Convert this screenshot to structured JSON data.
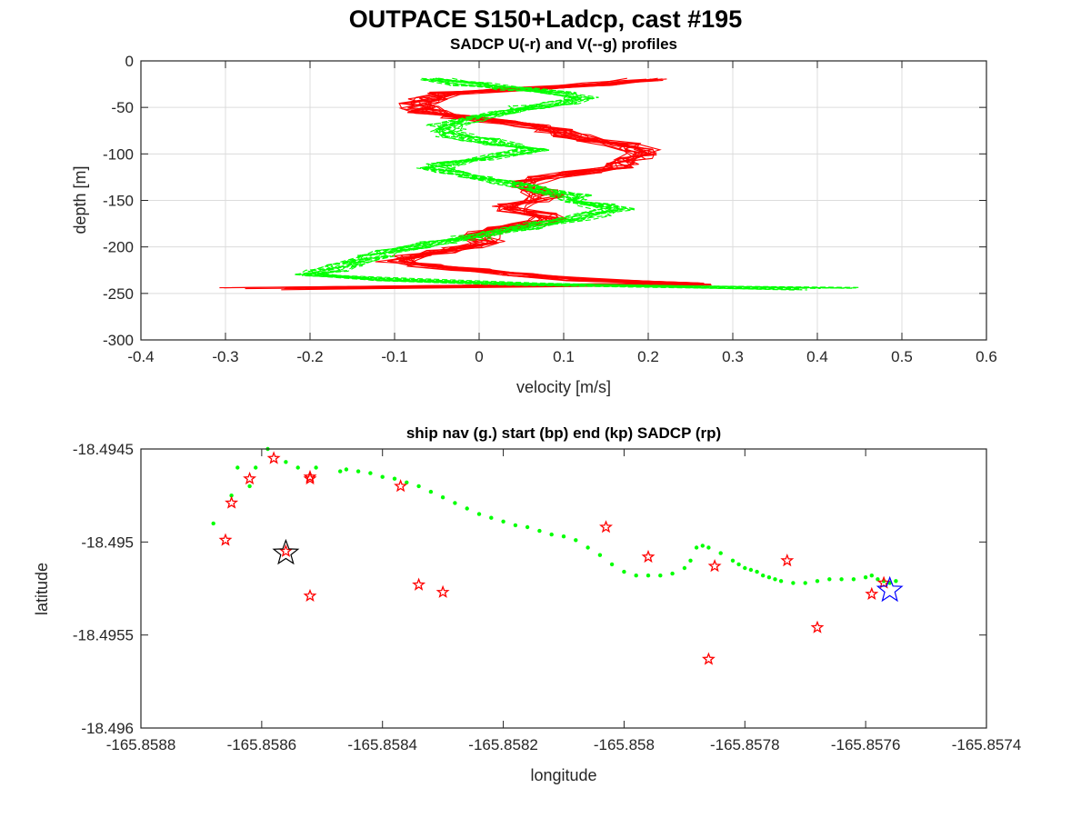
{
  "figure_title": "OUTPACE S150+Ladcp, cast #195",
  "chart_data": [
    {
      "type": "line",
      "title": "SADCP U(-r) and V(--g) profiles",
      "xlabel": "velocity [m/s]",
      "ylabel": "depth [m]",
      "xlim": [
        -0.4,
        0.6
      ],
      "ylim": [
        -300,
        0
      ],
      "xticks": [
        -0.4,
        -0.3,
        -0.2,
        -0.1,
        0,
        0.1,
        0.2,
        0.3,
        0.4,
        0.5,
        0.6
      ],
      "yticks": [
        -300,
        -250,
        -200,
        -150,
        -100,
        -50,
        0
      ],
      "xtick_labels": [
        "-0.4",
        "-0.3",
        "-0.2",
        "-0.1",
        "0",
        "0.1",
        "0.2",
        "0.3",
        "0.4",
        "0.5",
        "0.6"
      ],
      "ytick_labels": [
        "-300",
        "-250",
        "-200",
        "-150",
        "-100",
        "-50",
        "0"
      ],
      "grid": true,
      "series": [
        {
          "color": "#ff0000",
          "style": "solid",
          "depth": [
            -20,
            -25,
            -30,
            -35,
            -40,
            -45,
            -50,
            -55,
            -60,
            -65,
            -70,
            -75,
            -80,
            -85,
            -90,
            -95,
            -100,
            -105,
            -110,
            -115,
            -120,
            -125,
            -130,
            -135,
            -140,
            -145,
            -150,
            -155,
            -160,
            -165,
            -170,
            -175,
            -180,
            -185,
            -190,
            -195,
            -200,
            -205,
            -210,
            -215,
            -220,
            -225,
            -230,
            -235,
            -240,
            -245
          ],
          "velocity": [
            0.2,
            0.14,
            0.05,
            -0.04,
            -0.06,
            -0.07,
            -0.07,
            -0.06,
            -0.03,
            0.02,
            0.06,
            0.09,
            0.11,
            0.14,
            0.17,
            0.19,
            0.19,
            0.18,
            0.17,
            0.16,
            0.12,
            0.08,
            0.06,
            0.06,
            0.07,
            0.08,
            0.06,
            0.04,
            0.04,
            0.07,
            0.08,
            0.06,
            0.03,
            0.01,
            0.0,
            0.01,
            -0.02,
            -0.05,
            -0.08,
            -0.1,
            -0.06,
            -0.01,
            0.05,
            0.12,
            0.25,
            -0.25
          ]
        },
        {
          "color": "#00ff00",
          "style": "dashed",
          "depth": [
            -20,
            -25,
            -30,
            -35,
            -40,
            -45,
            -50,
            -55,
            -60,
            -65,
            -70,
            -75,
            -80,
            -85,
            -90,
            -95,
            -100,
            -105,
            -110,
            -115,
            -120,
            -125,
            -130,
            -135,
            -140,
            -145,
            -150,
            -155,
            -160,
            -165,
            -170,
            -175,
            -180,
            -185,
            -190,
            -195,
            -200,
            -205,
            -210,
            -215,
            -220,
            -225,
            -230,
            -235,
            -240,
            -245
          ],
          "velocity": [
            -0.05,
            -0.01,
            0.04,
            0.09,
            0.12,
            0.1,
            0.06,
            0.03,
            0.0,
            -0.02,
            -0.04,
            -0.04,
            -0.03,
            0.0,
            0.03,
            0.06,
            0.04,
            0.0,
            -0.04,
            -0.05,
            -0.03,
            0.0,
            0.03,
            0.06,
            0.08,
            0.11,
            0.12,
            0.14,
            0.16,
            0.14,
            0.11,
            0.08,
            0.05,
            0.02,
            -0.01,
            -0.05,
            -0.08,
            -0.1,
            -0.12,
            -0.14,
            -0.16,
            -0.18,
            -0.2,
            -0.1,
            0.05,
            0.4
          ]
        }
      ]
    },
    {
      "type": "scatter",
      "title": "ship nav (g.) start (bp) end (kp) SADCP (rp)",
      "xlabel": "longitude",
      "ylabel": "latitude",
      "xlim": [
        -165.8588,
        -165.8574
      ],
      "ylim": [
        -18.496,
        -18.4945
      ],
      "xticks": [
        -165.8588,
        -165.8586,
        -165.8584,
        -165.8582,
        -165.858,
        -165.8578,
        -165.8576,
        -165.8574
      ],
      "yticks": [
        -18.496,
        -18.4955,
        -18.495,
        -18.4945
      ],
      "xtick_labels": [
        "-165.8588",
        "-165.8586",
        "-165.8584",
        "-165.8582",
        "-165.858",
        "-165.8578",
        "-165.8576",
        "-165.8574"
      ],
      "ytick_labels": [
        "-18.496",
        "-18.4955",
        "-18.495",
        "-18.4945"
      ],
      "grid": false,
      "ship_nav": {
        "color": "#00ff00",
        "lon": [
          -165.85859,
          -165.85861,
          -165.85862,
          -165.85864,
          -165.85865,
          -165.85868,
          -165.85856,
          -165.85854,
          -165.85851,
          -165.85847,
          -165.85846,
          -165.85844,
          -165.85842,
          -165.8584,
          -165.85838,
          -165.85836,
          -165.85834,
          -165.85832,
          -165.8583,
          -165.85828,
          -165.85826,
          -165.85824,
          -165.85822,
          -165.8582,
          -165.85818,
          -165.85816,
          -165.85814,
          -165.85812,
          -165.8581,
          -165.85808,
          -165.85806,
          -165.85804,
          -165.85802,
          -165.858,
          -165.85798,
          -165.85796,
          -165.85794,
          -165.85792,
          -165.8579,
          -165.85789,
          -165.85788,
          -165.85787,
          -165.85786,
          -165.85784,
          -165.85782,
          -165.85781,
          -165.8578,
          -165.85779,
          -165.85778,
          -165.85777,
          -165.85776,
          -165.85775,
          -165.85774,
          -165.85772,
          -165.8577,
          -165.85768,
          -165.85766,
          -165.85764,
          -165.85762,
          -165.8576,
          -165.85759,
          -165.85758,
          -165.85757,
          -165.85756,
          -165.85755
        ],
        "lat": [
          -18.4945,
          -18.4946,
          -18.4947,
          -18.4946,
          -18.49475,
          -18.4949,
          -18.49457,
          -18.4946,
          -18.4946,
          -18.49462,
          -18.49461,
          -18.49462,
          -18.49463,
          -18.49465,
          -18.49466,
          -18.49468,
          -18.4947,
          -18.49473,
          -18.49476,
          -18.49479,
          -18.49482,
          -18.49485,
          -18.49487,
          -18.49489,
          -18.49491,
          -18.49492,
          -18.49494,
          -18.49496,
          -18.49497,
          -18.49499,
          -18.49503,
          -18.49507,
          -18.49512,
          -18.49516,
          -18.49518,
          -18.49518,
          -18.49518,
          -18.49517,
          -18.49514,
          -18.4951,
          -18.49503,
          -18.49502,
          -18.49503,
          -18.49506,
          -18.4951,
          -18.49512,
          -18.49514,
          -18.49515,
          -18.49516,
          -18.49518,
          -18.49519,
          -18.4952,
          -18.49521,
          -18.49522,
          -18.49522,
          -18.49521,
          -18.4952,
          -18.4952,
          -18.4952,
          -18.49519,
          -18.49518,
          -18.4952,
          -18.49521,
          -18.49522,
          -18.49521
        ]
      },
      "sadcp": {
        "color": "#ff0000",
        "lon": [
          -165.85858,
          -165.85862,
          -165.85865,
          -165.85866,
          -165.85852,
          -165.85852,
          -165.85837,
          -165.8583,
          -165.85803,
          -165.85856,
          -165.85852,
          -165.85834,
          -165.85796,
          -165.85785,
          -165.85773,
          -165.85768,
          -165.85786,
          -165.85757,
          -165.85759
        ],
        "lat": [
          -18.49455,
          -18.49466,
          -18.49479,
          -18.49499,
          -18.49465,
          -18.49466,
          -18.4947,
          -18.49527,
          -18.49492,
          -18.49505,
          -18.49529,
          -18.49523,
          -18.49508,
          -18.49513,
          -18.4951,
          -18.49546,
          -18.49563,
          -18.49522,
          -18.49528
        ]
      },
      "start": {
        "color": "#000000",
        "lon": -165.85856,
        "lat": -18.49506
      },
      "end": {
        "color": "#0000ff",
        "lon": -165.85756,
        "lat": -18.49526
      }
    }
  ]
}
